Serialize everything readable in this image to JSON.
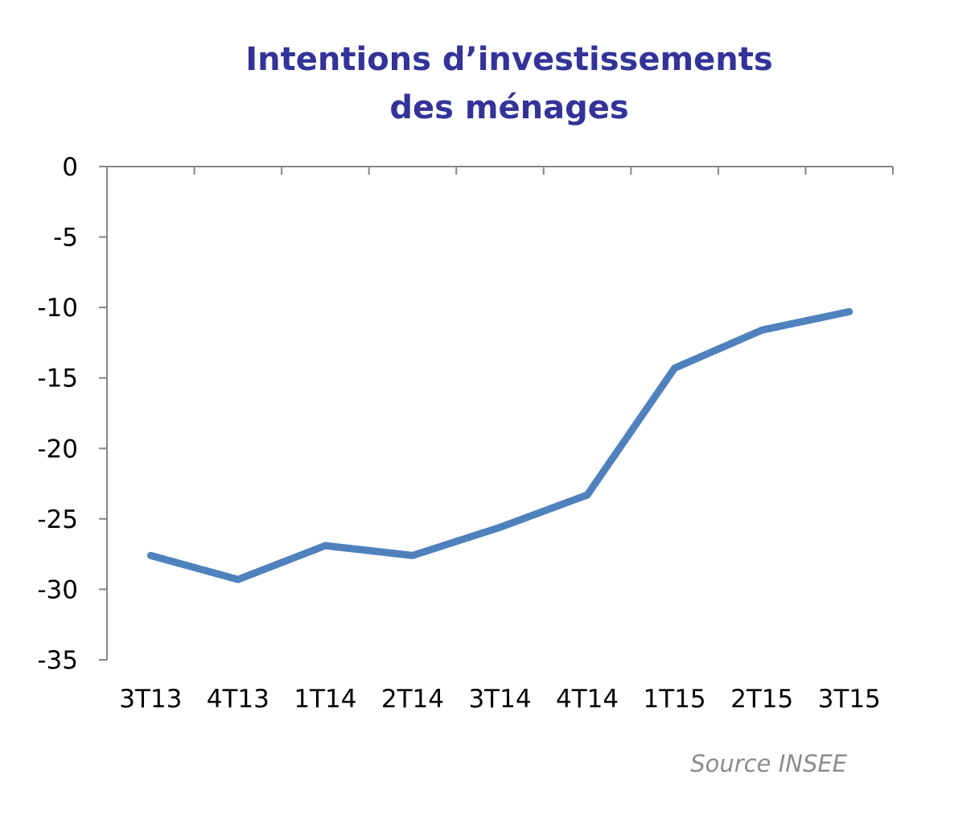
{
  "chart_data": {
    "type": "line",
    "title": [
      "Intentions d’investissements",
      "des ménages"
    ],
    "categories": [
      "3T13",
      "4T13",
      "1T14",
      "2T14",
      "3T14",
      "4T14",
      "1T15",
      "2T15",
      "3T15"
    ],
    "series": [
      {
        "name": "Intentions d’investissements des ménages",
        "values": [
          -27.6,
          -29.3,
          -26.9,
          -27.6,
          -25.6,
          -23.3,
          -14.3,
          -11.6,
          -10.3
        ]
      }
    ],
    "ylim": [
      -35,
      0
    ],
    "yticks": [
      0,
      -5,
      -10,
      -15,
      -20,
      -25,
      -30,
      -35
    ],
    "xlabel": "",
    "ylabel": "",
    "grid": false,
    "source": "Source INSEE"
  },
  "colors": {
    "title": "#333399",
    "line": "#4f81bd",
    "axis": "#868686",
    "source": "#8c8c8c"
  }
}
